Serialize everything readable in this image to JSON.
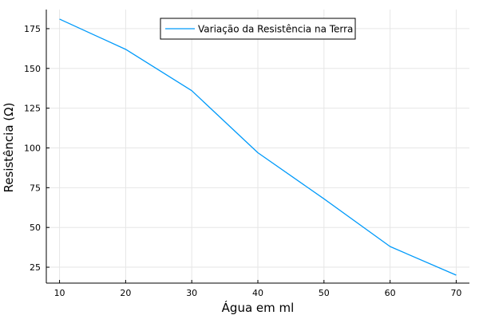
{
  "chart_data": {
    "type": "line",
    "x": [
      10,
      20,
      30,
      40,
      50,
      60,
      70
    ],
    "series": [
      {
        "name": "Variação da Resistência na Terra",
        "values": [
          181,
          162,
          136,
          97,
          68,
          38,
          20
        ],
        "color": "#009AFA"
      }
    ],
    "xlabel": "Água em ml",
    "ylabel": "Resistência (Ω)",
    "xlim": [
      8,
      72
    ],
    "ylim": [
      15,
      187
    ],
    "xticks": [
      10,
      20,
      30,
      40,
      50,
      60,
      70
    ],
    "yticks": [
      25,
      50,
      75,
      100,
      125,
      150,
      175
    ],
    "grid": true,
    "legend_position": "top"
  }
}
